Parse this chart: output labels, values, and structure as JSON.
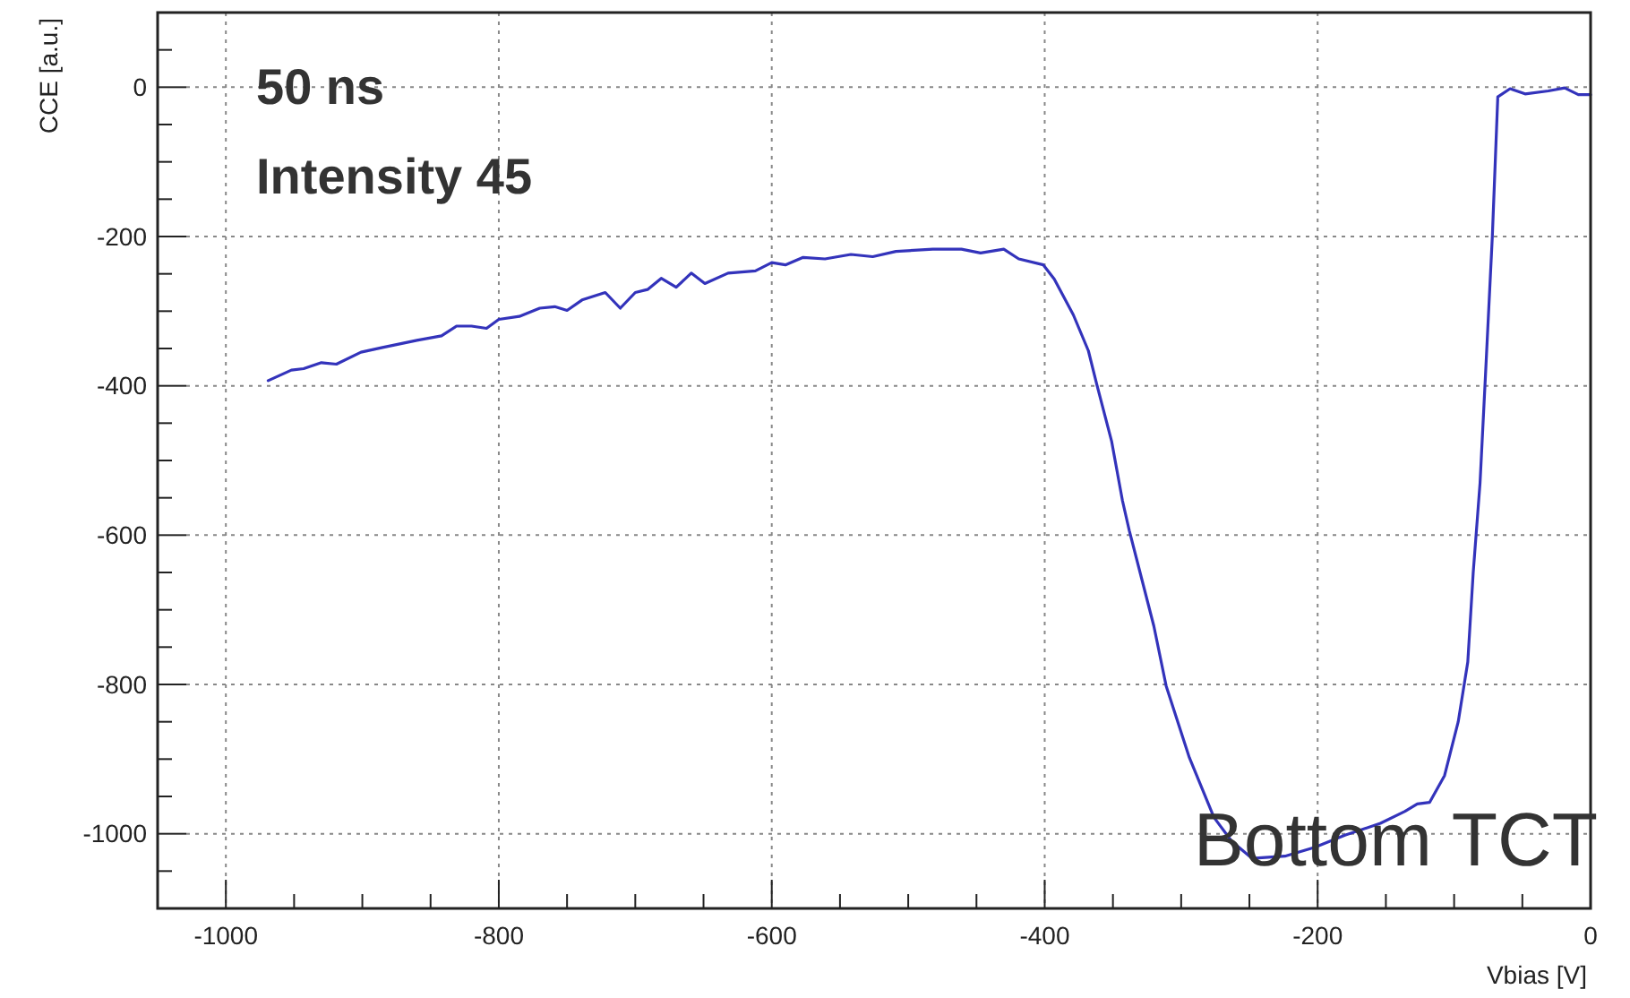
{
  "chart_data": {
    "type": "line",
    "xlabel": "Vbias [V]",
    "ylabel": "CCE [a.u.]",
    "annotations": [
      "50 ns",
      "Intensity 45",
      "Bottom TCT"
    ],
    "xlim": [
      -1050,
      0
    ],
    "ylim": [
      -1100,
      100
    ],
    "xticks": [
      {
        "value": -1050,
        "label": null
      },
      -1000,
      {
        "value": -950,
        "label": null
      },
      {
        "value": -900,
        "label": null
      },
      {
        "value": -850,
        "label": null
      },
      -800,
      {
        "value": -750,
        "label": null
      },
      {
        "value": -700,
        "label": null
      },
      {
        "value": -650,
        "label": null
      },
      -600,
      {
        "value": -550,
        "label": null
      },
      {
        "value": -500,
        "label": null
      },
      {
        "value": -450,
        "label": null
      },
      -400,
      {
        "value": -350,
        "label": null
      },
      {
        "value": -300,
        "label": null
      },
      {
        "value": -250,
        "label": null
      },
      -200,
      {
        "value": -150,
        "label": null
      },
      {
        "value": -100,
        "label": null
      },
      {
        "value": -50,
        "label": null
      },
      0
    ],
    "yticks": [
      {
        "value": -1050,
        "label": null
      },
      -1000,
      {
        "value": -950,
        "label": null
      },
      {
        "value": -900,
        "label": null
      },
      {
        "value": -850,
        "label": null
      },
      -800,
      {
        "value": -750,
        "label": null
      },
      {
        "value": -700,
        "label": null
      },
      {
        "value": -650,
        "label": null
      },
      -600,
      {
        "value": -550,
        "label": null
      },
      {
        "value": -500,
        "label": null
      },
      {
        "value": -450,
        "label": null
      },
      -400,
      {
        "value": -350,
        "label": null
      },
      {
        "value": -300,
        "label": null
      },
      {
        "value": -250,
        "label": null
      },
      -200,
      {
        "value": -150,
        "label": null
      },
      {
        "value": -100,
        "label": null
      },
      {
        "value": -50,
        "label": null
      },
      0,
      {
        "value": 50,
        "label": null
      }
    ],
    "grid": true,
    "marker": "none",
    "line_style": "solid",
    "series": [
      {
        "color": "#3333bb",
        "x": [
          -969,
          -952,
          -943,
          -930,
          -919,
          -901,
          -886,
          -860,
          -842,
          -831,
          -820,
          -809,
          -800,
          -785,
          -770,
          -759,
          -750,
          -739,
          -722,
          -711,
          -700,
          -691,
          -681,
          -670,
          -659,
          -649,
          -632,
          -612,
          -600,
          -590,
          -577,
          -561,
          -542,
          -526,
          -509,
          -482,
          -461,
          -447,
          -430,
          -419,
          -401,
          -393,
          -379,
          -368,
          -362,
          -351,
          -343,
          -338,
          -320,
          -311,
          -294,
          -276,
          -263,
          -248,
          -224,
          -202,
          -180,
          -154,
          -136,
          -127,
          -118,
          -107,
          -97,
          -90,
          -86,
          -81,
          -77,
          -72,
          -68,
          -59,
          -48,
          -31,
          -19,
          -9,
          0
        ],
        "values": [
          -393,
          -379,
          -377,
          -369,
          -371,
          -355,
          -349,
          -339,
          -333,
          -320,
          -320,
          -323,
          -311,
          -307,
          -296,
          -294,
          -299,
          -285,
          -275,
          -296,
          -275,
          -271,
          -256,
          -268,
          -249,
          -263,
          -249,
          -246,
          -235,
          -238,
          -228,
          -230,
          -224,
          -227,
          -220,
          -217,
          -217,
          -222,
          -217,
          -230,
          -238,
          -257,
          -305,
          -353,
          -397,
          -474,
          -554,
          -594,
          -722,
          -802,
          -898,
          -978,
          -1010,
          -1033,
          -1030,
          -1018,
          -1002,
          -986,
          -970,
          -960,
          -958,
          -922,
          -850,
          -770,
          -650,
          -530,
          -385,
          -200,
          -13,
          -2,
          -9,
          -5,
          -1,
          -10,
          -10
        ]
      }
    ]
  }
}
